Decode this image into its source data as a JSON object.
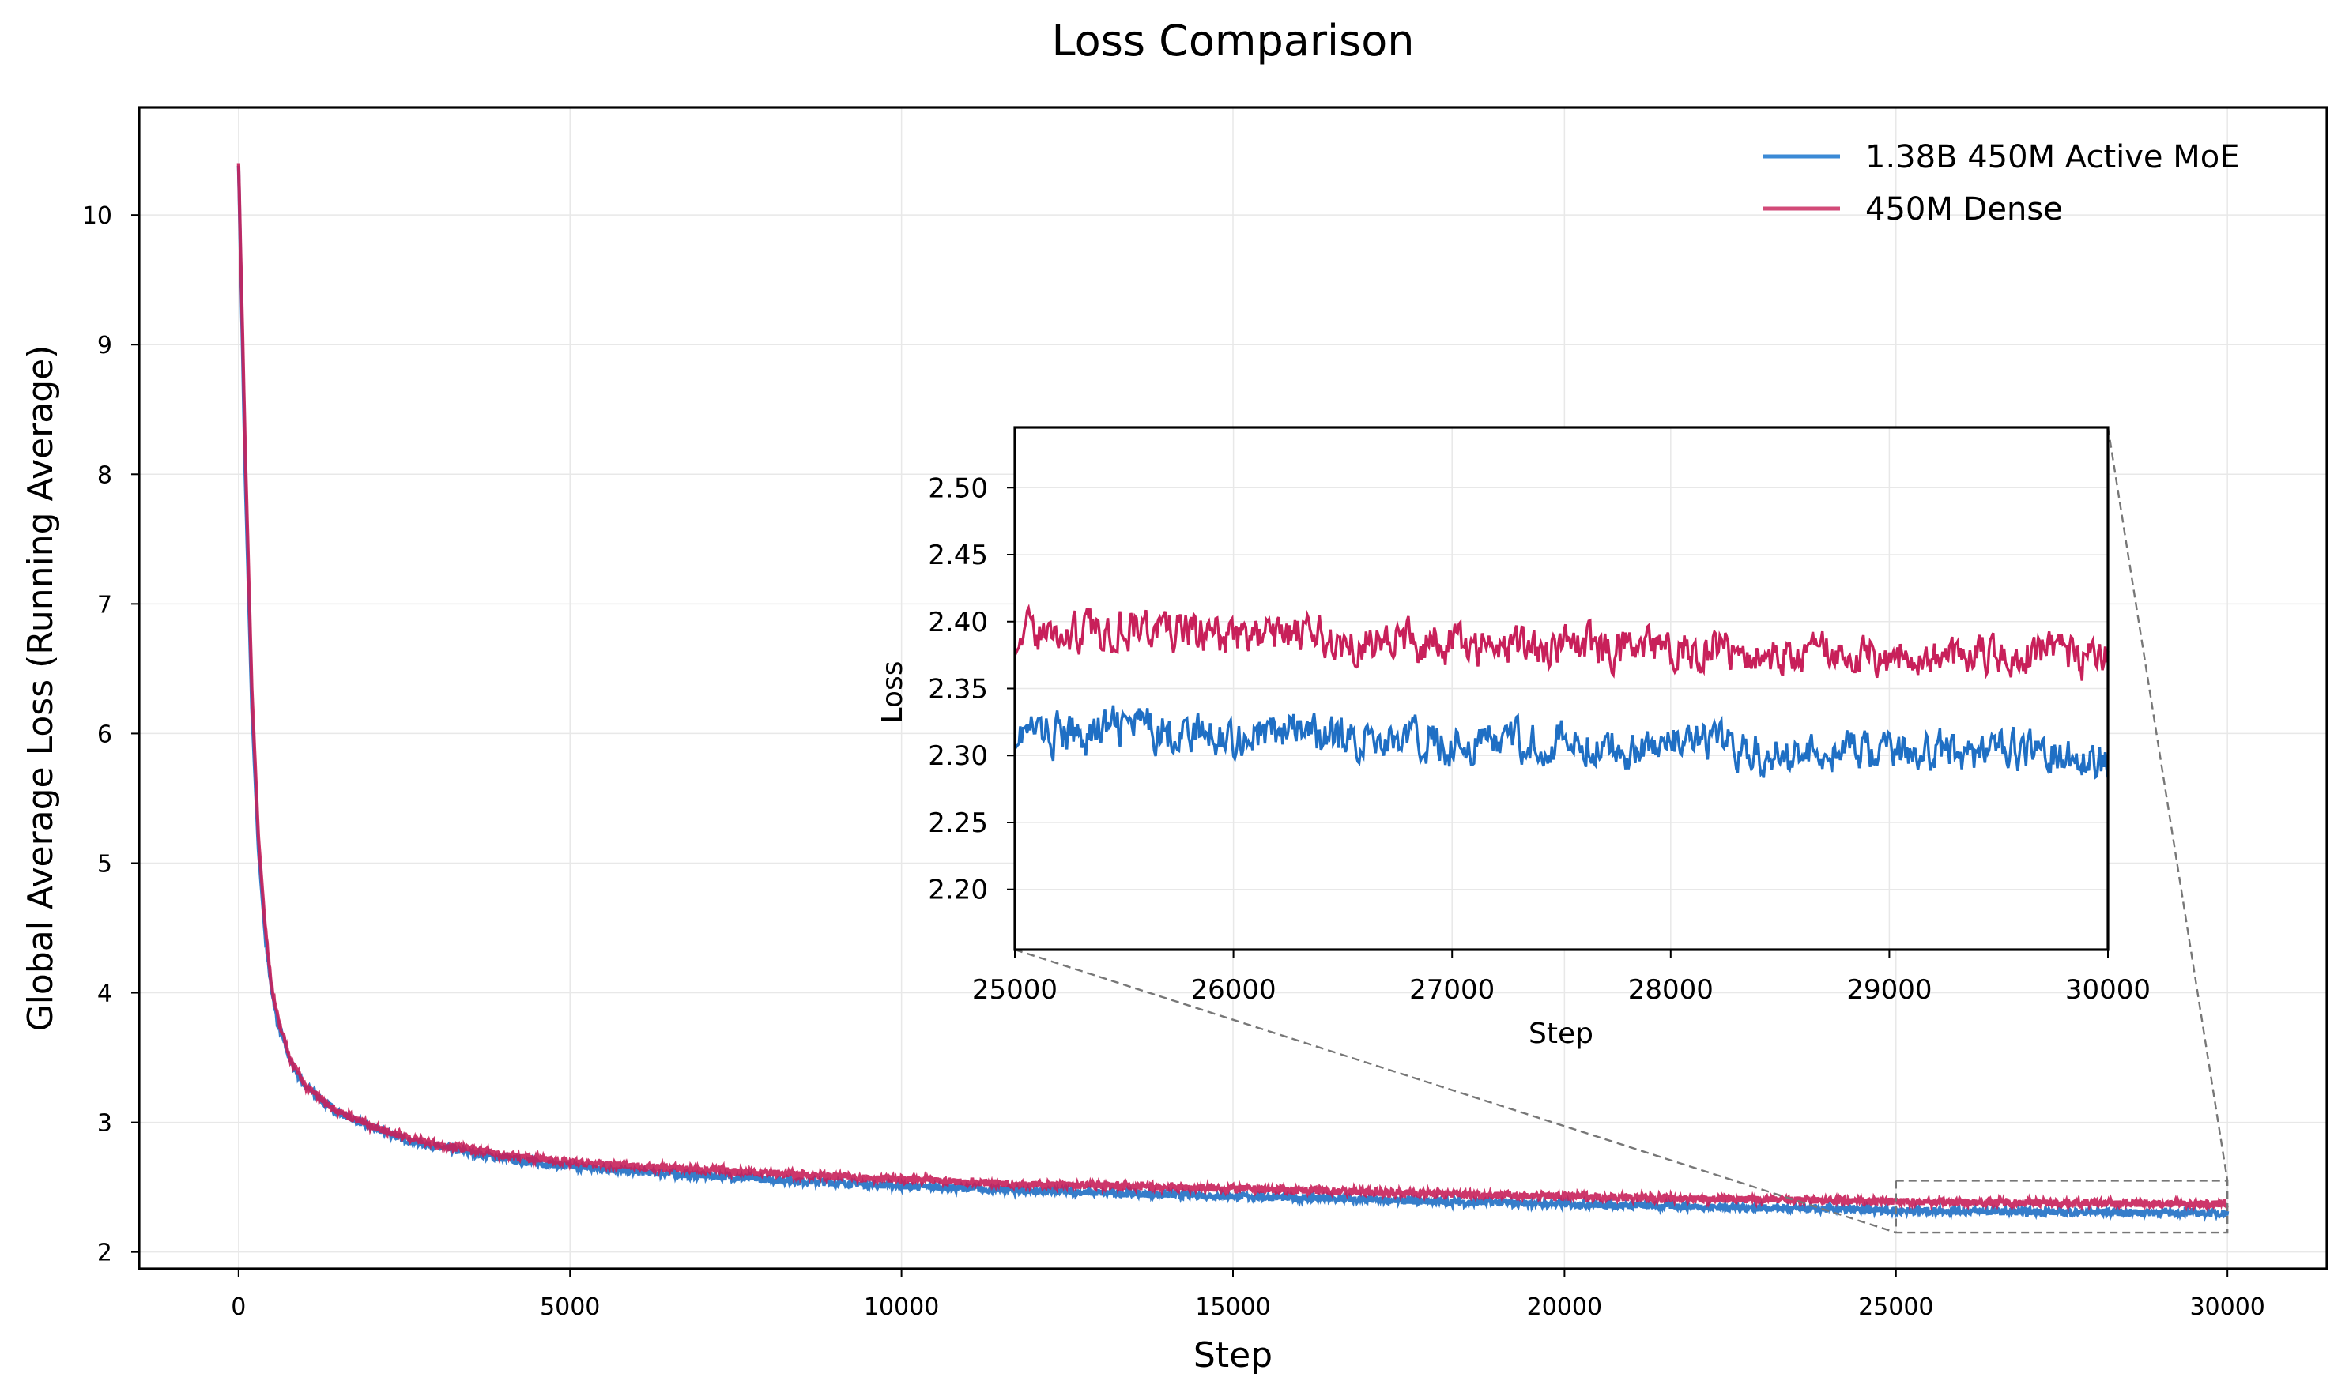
{
  "chart_data": [
    {
      "id": "main",
      "type": "line",
      "title": "Loss Comparison",
      "xlabel": "Step",
      "ylabel": "Global Average Loss (Running Average)",
      "xlim": [
        -1500,
        31500
      ],
      "ylim": [
        1.87,
        10.83
      ],
      "xticks": [
        0,
        5000,
        10000,
        15000,
        20000,
        25000,
        30000
      ],
      "yticks": [
        2,
        3,
        4,
        5,
        6,
        7,
        8,
        9,
        10
      ],
      "grid": true,
      "legend_position": "top-right",
      "series": [
        {
          "name": "1.38B 450M Active MoE",
          "color": "#1f6fc4",
          "x": [
            0,
            100,
            200,
            300,
            400,
            500,
            600,
            800,
            1000,
            1250,
            1500,
            2000,
            2500,
            3000,
            4000,
            5000,
            6000,
            8000,
            10000,
            12000,
            15000,
            18000,
            20000,
            22000,
            25000,
            27000,
            30000
          ],
          "y": [
            10.38,
            8.0,
            6.2,
            5.1,
            4.45,
            4.0,
            3.75,
            3.45,
            3.28,
            3.17,
            3.08,
            2.96,
            2.87,
            2.81,
            2.72,
            2.66,
            2.62,
            2.56,
            2.51,
            2.47,
            2.43,
            2.39,
            2.37,
            2.35,
            2.32,
            2.31,
            2.3
          ]
        },
        {
          "name": "450M Dense",
          "color": "#c8205a",
          "x": [
            0,
            100,
            200,
            300,
            400,
            500,
            600,
            800,
            1000,
            1250,
            1500,
            2000,
            2500,
            3000,
            4000,
            5000,
            6000,
            8000,
            10000,
            12000,
            15000,
            18000,
            20000,
            22000,
            25000,
            27000,
            30000
          ],
          "y": [
            10.4,
            8.2,
            6.35,
            5.2,
            4.52,
            4.05,
            3.78,
            3.47,
            3.29,
            3.18,
            3.09,
            2.97,
            2.89,
            2.83,
            2.75,
            2.69,
            2.66,
            2.61,
            2.56,
            2.52,
            2.49,
            2.45,
            2.43,
            2.41,
            2.39,
            2.38,
            2.37
          ]
        }
      ],
      "zoom_box": {
        "x": [
          25000,
          30000
        ],
        "y": [
          2.15,
          2.55
        ]
      }
    },
    {
      "id": "inset",
      "type": "line",
      "xlabel": "Step",
      "ylabel": "Loss",
      "xlim": [
        25000,
        30000
      ],
      "ylim": [
        2.155,
        2.545
      ],
      "xticks": [
        25000,
        26000,
        27000,
        28000,
        29000,
        30000
      ],
      "yticks": [
        2.2,
        2.25,
        2.3,
        2.35,
        2.4,
        2.45,
        2.5
      ],
      "ytick_labels": [
        "2.20",
        "2.25",
        "2.30",
        "2.35",
        "2.40",
        "2.45",
        "2.50"
      ],
      "grid": true,
      "series": [
        {
          "name": "1.38B 450M Active MoE",
          "color": "#1f6fc4",
          "x": [
            25000,
            25250,
            25500,
            25750,
            26000,
            26250,
            26500,
            26750,
            27000,
            27250,
            27500,
            27750,
            28000,
            28250,
            28500,
            28750,
            29000,
            29250,
            29500,
            29750,
            30000
          ],
          "y": [
            2.318,
            2.315,
            2.322,
            2.318,
            2.314,
            2.318,
            2.312,
            2.313,
            2.308,
            2.31,
            2.31,
            2.305,
            2.308,
            2.308,
            2.298,
            2.305,
            2.303,
            2.302,
            2.304,
            2.302,
            2.296
          ],
          "noise": 0.012
        },
        {
          "name": "450M Dense",
          "color": "#c8205a",
          "x": [
            25000,
            25250,
            25500,
            25750,
            26000,
            26250,
            26500,
            26750,
            27000,
            27250,
            27500,
            27750,
            28000,
            28250,
            28500,
            28750,
            29000,
            29250,
            29500,
            29750,
            30000
          ],
          "y": [
            2.392,
            2.39,
            2.397,
            2.392,
            2.388,
            2.39,
            2.385,
            2.387,
            2.382,
            2.383,
            2.383,
            2.378,
            2.38,
            2.38,
            2.372,
            2.377,
            2.375,
            2.375,
            2.377,
            2.375,
            2.368
          ],
          "noise": 0.012
        }
      ]
    }
  ]
}
